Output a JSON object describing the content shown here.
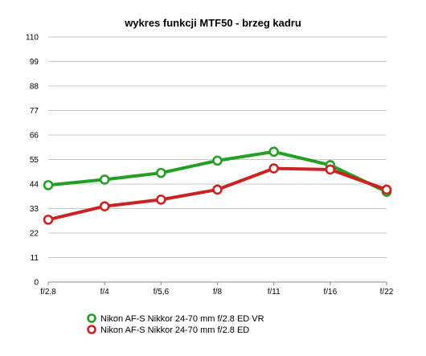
{
  "chart_data": {
    "type": "line",
    "title": "wykres funkcji MTF50 - brzeg kadru",
    "xlabel": "",
    "ylabel": "",
    "categories": [
      "f/2.8",
      "f/4",
      "f/5,6",
      "f/8",
      "f/11",
      "f/16",
      "f/22"
    ],
    "ylim": [
      0,
      110
    ],
    "yticks": [
      0,
      11,
      22,
      33,
      44,
      55,
      66,
      77,
      88,
      99,
      110
    ],
    "grid": true,
    "legend_position": "bottom",
    "series": [
      {
        "name": "Nikon AF-S Nikkor 24-70 mm f/2.8 ED VR",
        "color": "#22a022",
        "values": [
          43.5,
          46,
          49,
          54.5,
          58.5,
          52.5,
          40.5
        ]
      },
      {
        "name": "Nikon AF-S Nikkor 24-70 mm f/2.8 ED",
        "color": "#cc2222",
        "values": [
          28,
          34,
          37,
          41.5,
          51,
          50.5,
          41.5
        ]
      }
    ]
  }
}
